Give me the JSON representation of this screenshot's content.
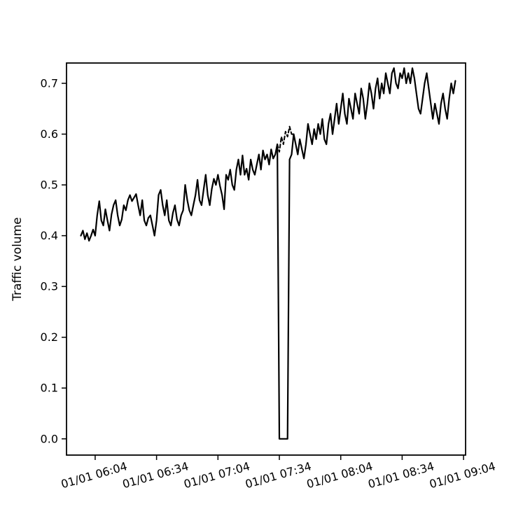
{
  "figure": {
    "background": "#ffffff",
    "line_color": "#000000"
  },
  "chart_data": {
    "type": "line",
    "title": "",
    "xlabel": "",
    "ylabel": "Traffic volume",
    "legend": "none",
    "grid": false,
    "ylim": [
      -0.032,
      0.74
    ],
    "x_domain": [
      -7,
      188
    ],
    "time_start": "01/01 05:57",
    "sample_interval_minutes": 1,
    "y_ticks": [
      0.0,
      0.1,
      0.2,
      0.3,
      0.4,
      0.5,
      0.6,
      0.7
    ],
    "x_ticks": [
      {
        "label": "01/01 06:04",
        "t": 7
      },
      {
        "label": "01/01 06:34",
        "t": 37
      },
      {
        "label": "01/01 07:04",
        "t": 67
      },
      {
        "label": "01/01 07:34",
        "t": 97
      },
      {
        "label": "01/01 08:04",
        "t": 127
      },
      {
        "label": "01/01 08:34",
        "t": 157
      },
      {
        "label": "01/01 09:04",
        "t": 187
      }
    ],
    "series": [
      {
        "name": "traffic-actual",
        "style": "solid",
        "width": 2.2,
        "start_t": 0,
        "step_min": 1,
        "values": [
          0.4,
          0.41,
          0.393,
          0.405,
          0.39,
          0.4,
          0.412,
          0.4,
          0.44,
          0.468,
          0.43,
          0.42,
          0.452,
          0.43,
          0.41,
          0.442,
          0.46,
          0.47,
          0.44,
          0.42,
          0.432,
          0.46,
          0.45,
          0.47,
          0.48,
          0.468,
          0.475,
          0.482,
          0.46,
          0.44,
          0.47,
          0.43,
          0.42,
          0.435,
          0.44,
          0.42,
          0.4,
          0.43,
          0.48,
          0.49,
          0.46,
          0.44,
          0.47,
          0.43,
          0.42,
          0.445,
          0.46,
          0.432,
          0.42,
          0.44,
          0.45,
          0.5,
          0.47,
          0.45,
          0.44,
          0.46,
          0.48,
          0.51,
          0.47,
          0.46,
          0.49,
          0.52,
          0.48,
          0.46,
          0.492,
          0.512,
          0.5,
          0.52,
          0.498,
          0.48,
          0.452,
          0.52,
          0.51,
          0.53,
          0.5,
          0.49,
          0.53,
          0.55,
          0.52,
          0.558,
          0.52,
          0.532,
          0.51,
          0.55,
          0.53,
          0.52,
          0.54,
          0.56,
          0.53,
          0.568,
          0.55,
          0.56,
          0.54,
          0.57,
          0.552,
          0.56,
          0.58,
          0.0,
          0.0,
          0.0,
          0.0,
          0.0,
          0.55,
          0.56,
          0.6,
          0.58,
          0.56,
          0.59,
          0.57,
          0.552,
          0.58,
          0.62,
          0.6,
          0.58,
          0.61,
          0.59,
          0.62,
          0.6,
          0.63,
          0.59,
          0.58,
          0.62,
          0.64,
          0.6,
          0.63,
          0.66,
          0.62,
          0.65,
          0.68,
          0.64,
          0.62,
          0.67,
          0.65,
          0.63,
          0.68,
          0.66,
          0.64,
          0.69,
          0.67,
          0.63,
          0.66,
          0.7,
          0.68,
          0.65,
          0.69,
          0.71,
          0.67,
          0.7,
          0.68,
          0.72,
          0.7,
          0.68,
          0.72,
          0.73,
          0.7,
          0.69,
          0.72,
          0.71,
          0.73,
          0.7,
          0.72,
          0.7,
          0.73,
          0.71,
          0.68,
          0.65,
          0.64,
          0.67,
          0.7,
          0.72,
          0.69,
          0.66,
          0.63,
          0.66,
          0.64,
          0.62,
          0.66,
          0.68,
          0.65,
          0.63,
          0.67,
          0.7,
          0.68,
          0.705
        ]
      },
      {
        "name": "traffic-expected-dashed",
        "style": "dashed",
        "width": 2.0,
        "points": [
          [
            96,
            0.58
          ],
          [
            97,
            0.565
          ],
          [
            98,
            0.595
          ],
          [
            99,
            0.58
          ],
          [
            100,
            0.605
          ],
          [
            101,
            0.595
          ],
          [
            102,
            0.615
          ],
          [
            103,
            0.6
          ],
          [
            104,
            0.6
          ]
        ]
      }
    ]
  }
}
